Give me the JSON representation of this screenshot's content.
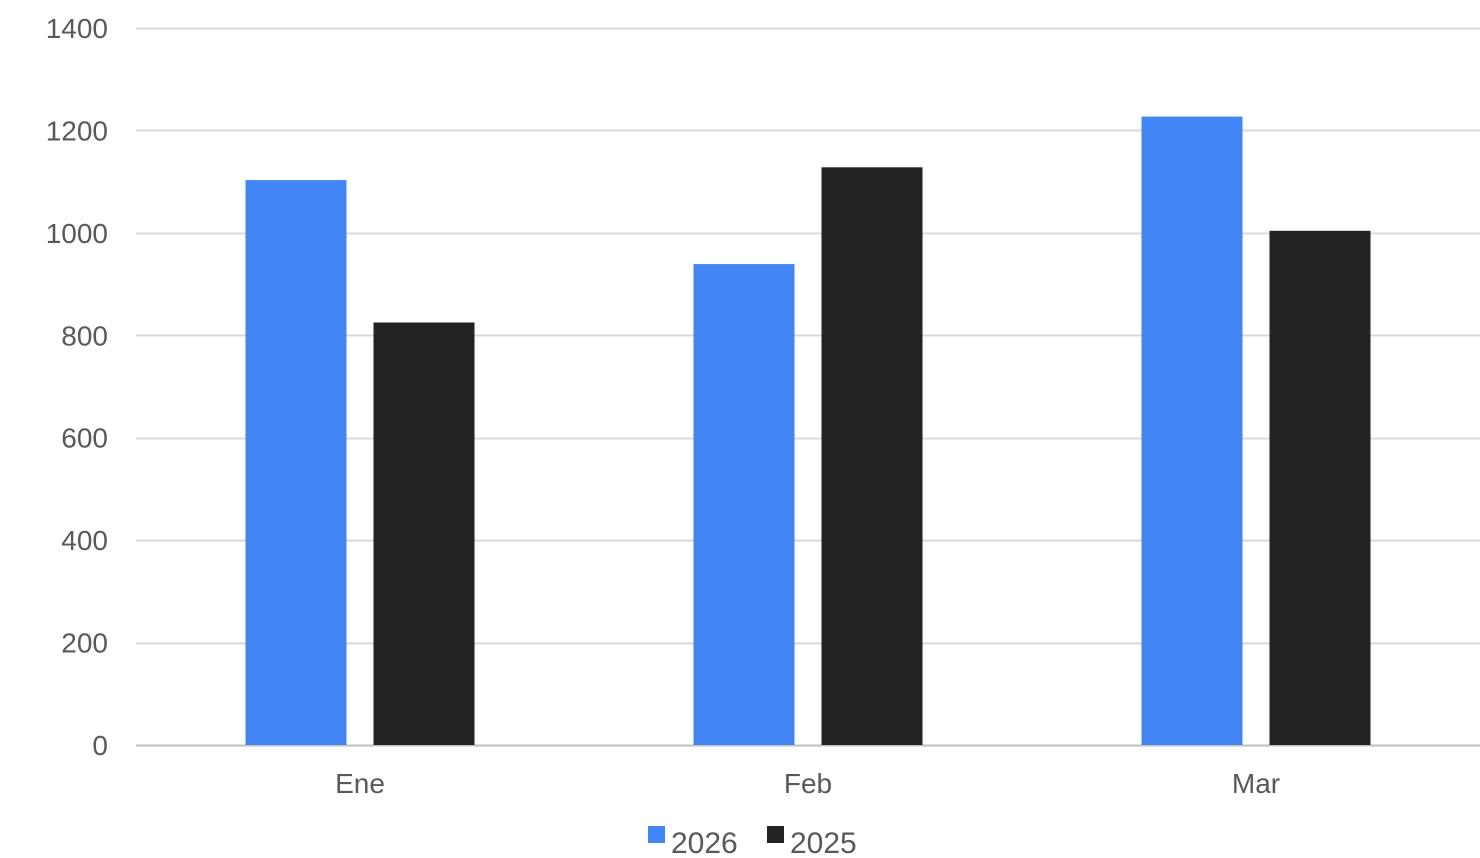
{
  "chart_data": {
    "type": "bar",
    "categories": [
      "Ene",
      "Feb",
      "Mar"
    ],
    "series": [
      {
        "name": "2026",
        "values": [
          1103,
          939,
          1227
        ],
        "color": "#4285F4"
      },
      {
        "name": "2025",
        "values": [
          825,
          1128,
          1004
        ],
        "color": "#222222"
      }
    ],
    "title": "",
    "xlabel": "",
    "ylabel": "",
    "ylim": [
      0,
      1400
    ],
    "yticks": [
      0,
      200,
      400,
      600,
      800,
      1000,
      1200,
      1400
    ],
    "grid": true,
    "legend": "bottom-center"
  }
}
